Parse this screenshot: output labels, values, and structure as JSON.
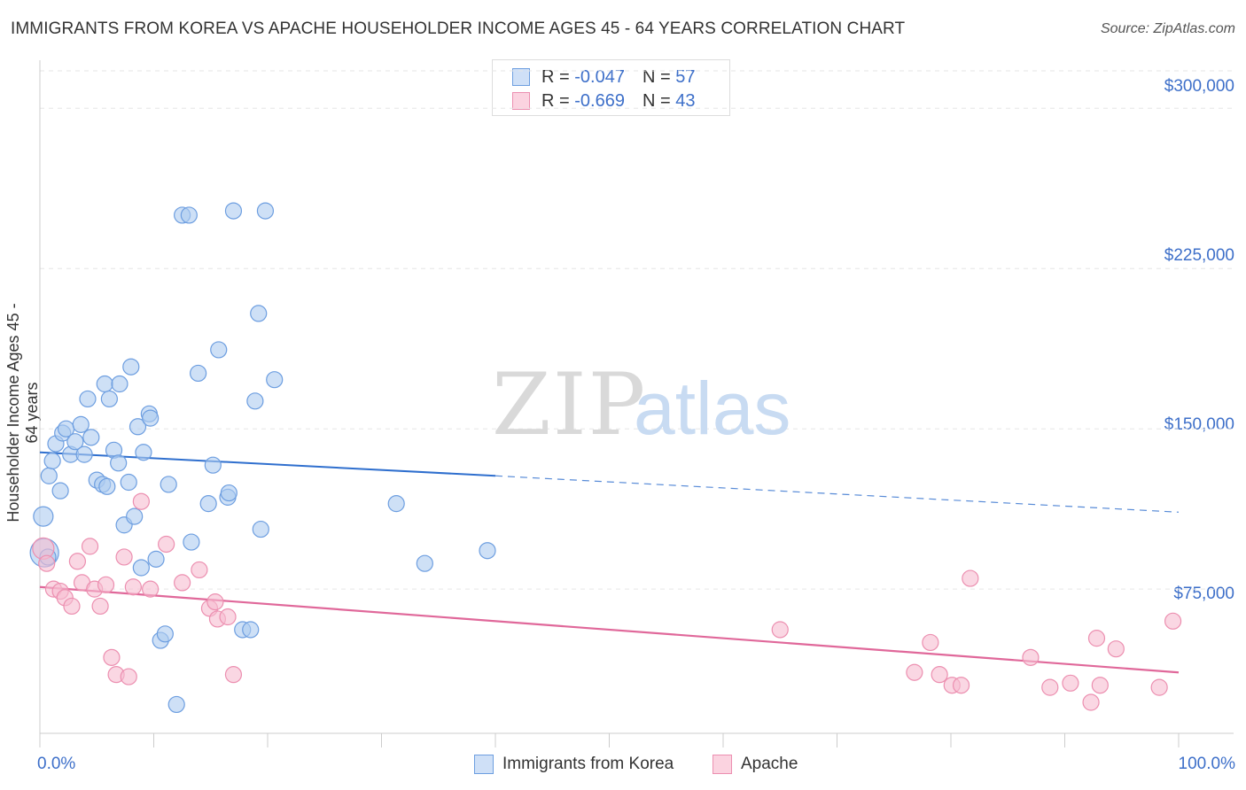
{
  "title": "IMMIGRANTS FROM KOREA VS APACHE HOUSEHOLDER INCOME AGES 45 - 64 YEARS CORRELATION CHART",
  "source": "Source: ZipAtlas.com",
  "watermark": {
    "zip": "ZIP",
    "atlas": "atlas"
  },
  "legend": {
    "korea": {
      "r_label": "R =",
      "r_value": "-0.047",
      "n_label": "N =",
      "n_value": "57"
    },
    "apache": {
      "r_label": "R =",
      "r_value": "-0.669",
      "n_label": "N =",
      "n_value": "43"
    }
  },
  "colors": {
    "korea_fill": "#aecbf0",
    "korea_stroke": "#6d9ee0",
    "korea_line": "#2f6fce",
    "apache_fill": "#f7bcd0",
    "apache_stroke": "#ec8fb0",
    "apache_line": "#e0689a",
    "tick_text": "#3d6fc9"
  },
  "chart_data": {
    "type": "scatter",
    "title": "IMMIGRANTS FROM KOREA VS APACHE HOUSEHOLDER INCOME AGES 45 - 64 YEARS CORRELATION CHART",
    "xlabel": "",
    "ylabel": "Householder Income Ages 45 - 64 years",
    "xlim": [
      0,
      100
    ],
    "ylim": [
      7500,
      322500
    ],
    "x_tick_labels": [
      "0.0%",
      "100.0%"
    ],
    "y_ticks": [
      75000,
      150000,
      225000,
      300000
    ],
    "y_tick_labels": [
      "$75,000",
      "$150,000",
      "$225,000",
      "$300,000"
    ],
    "grid": true,
    "series": [
      {
        "name": "Immigrants from Korea",
        "r": -0.047,
        "n": 57,
        "trend": {
          "y_at_0": 139000,
          "y_at_40": 128000,
          "y_at_100": 111000,
          "solid_until": 40
        },
        "points": [
          [
            0.3,
            109000,
            11
          ],
          [
            0.4,
            92000,
            16
          ],
          [
            0.8,
            128000,
            9
          ],
          [
            1.1,
            135000,
            9
          ],
          [
            1.4,
            143000,
            9
          ],
          [
            1.8,
            121000,
            9
          ],
          [
            2.0,
            148000,
            9
          ],
          [
            2.3,
            150000,
            9
          ],
          [
            2.7,
            138000,
            9
          ],
          [
            3.1,
            144000,
            9
          ],
          [
            3.6,
            152000,
            9
          ],
          [
            3.9,
            138000,
            9
          ],
          [
            4.2,
            164000,
            9
          ],
          [
            4.5,
            146000,
            9
          ],
          [
            5.0,
            126000,
            9
          ],
          [
            5.5,
            124000,
            9
          ],
          [
            5.7,
            171000,
            9
          ],
          [
            5.9,
            123000,
            9
          ],
          [
            6.1,
            164000,
            9
          ],
          [
            6.5,
            140000,
            9
          ],
          [
            6.9,
            134000,
            9
          ],
          [
            7.0,
            171000,
            9
          ],
          [
            7.4,
            105000,
            9
          ],
          [
            7.8,
            125000,
            9
          ],
          [
            8.0,
            179000,
            9
          ],
          [
            8.3,
            109000,
            9
          ],
          [
            8.6,
            151000,
            9
          ],
          [
            8.9,
            85000,
            9
          ],
          [
            9.1,
            139000,
            9
          ],
          [
            9.6,
            157000,
            9
          ],
          [
            9.7,
            155000,
            9
          ],
          [
            10.2,
            89000,
            9
          ],
          [
            10.6,
            51000,
            9
          ],
          [
            11.0,
            54000,
            9
          ],
          [
            11.3,
            124000,
            9
          ],
          [
            12.0,
            21000,
            9
          ],
          [
            12.5,
            250000,
            9
          ],
          [
            13.1,
            250000,
            9
          ],
          [
            13.3,
            97000,
            9
          ],
          [
            13.9,
            176000,
            9
          ],
          [
            14.8,
            115000,
            9
          ],
          [
            15.2,
            133000,
            9
          ],
          [
            15.7,
            187000,
            9
          ],
          [
            16.5,
            118000,
            9
          ],
          [
            16.6,
            120000,
            9
          ],
          [
            17.0,
            252000,
            9
          ],
          [
            17.8,
            56000,
            9
          ],
          [
            18.5,
            56000,
            9
          ],
          [
            18.9,
            163000,
            9
          ],
          [
            19.2,
            204000,
            9
          ],
          [
            19.4,
            103000,
            9
          ],
          [
            19.8,
            252000,
            9
          ],
          [
            20.6,
            173000,
            9
          ],
          [
            31.3,
            115000,
            9
          ],
          [
            33.8,
            87000,
            9
          ],
          [
            39.3,
            93000,
            9
          ],
          [
            0.7,
            90000,
            9
          ]
        ]
      },
      {
        "name": "Apache",
        "r": -0.669,
        "n": 43,
        "trend": {
          "y_at_0": 76000,
          "y_at_100": 36000,
          "solid_until": 100
        },
        "points": [
          [
            0.3,
            94000,
            12
          ],
          [
            0.6,
            87000,
            9
          ],
          [
            1.2,
            75000,
            9
          ],
          [
            1.8,
            74000,
            9
          ],
          [
            2.2,
            71000,
            9
          ],
          [
            2.8,
            67000,
            9
          ],
          [
            3.3,
            88000,
            9
          ],
          [
            3.7,
            78000,
            9
          ],
          [
            4.4,
            95000,
            9
          ],
          [
            4.8,
            75000,
            9
          ],
          [
            5.3,
            67000,
            9
          ],
          [
            5.8,
            77000,
            9
          ],
          [
            6.3,
            43000,
            9
          ],
          [
            6.7,
            35000,
            9
          ],
          [
            7.4,
            90000,
            9
          ],
          [
            7.8,
            34000,
            9
          ],
          [
            8.2,
            76000,
            9
          ],
          [
            8.9,
            116000,
            9
          ],
          [
            9.7,
            75000,
            9
          ],
          [
            11.1,
            96000,
            9
          ],
          [
            12.5,
            78000,
            9
          ],
          [
            14.0,
            84000,
            9
          ],
          [
            14.9,
            66000,
            9
          ],
          [
            15.4,
            69000,
            9
          ],
          [
            15.6,
            61000,
            9
          ],
          [
            16.5,
            62000,
            9
          ],
          [
            17.0,
            35000,
            9
          ],
          [
            65.0,
            56000,
            9
          ],
          [
            76.8,
            36000,
            9
          ],
          [
            78.2,
            50000,
            9
          ],
          [
            79.0,
            35000,
            9
          ],
          [
            80.1,
            30000,
            9
          ],
          [
            80.9,
            30000,
            9
          ],
          [
            81.7,
            80000,
            9
          ],
          [
            87.0,
            43000,
            9
          ],
          [
            88.7,
            29000,
            9
          ],
          [
            90.5,
            31000,
            9
          ],
          [
            92.3,
            22000,
            9
          ],
          [
            92.8,
            52000,
            9
          ],
          [
            93.1,
            30000,
            9
          ],
          [
            94.5,
            47000,
            9
          ],
          [
            98.3,
            29000,
            9
          ],
          [
            99.5,
            60000,
            9
          ]
        ]
      }
    ]
  }
}
